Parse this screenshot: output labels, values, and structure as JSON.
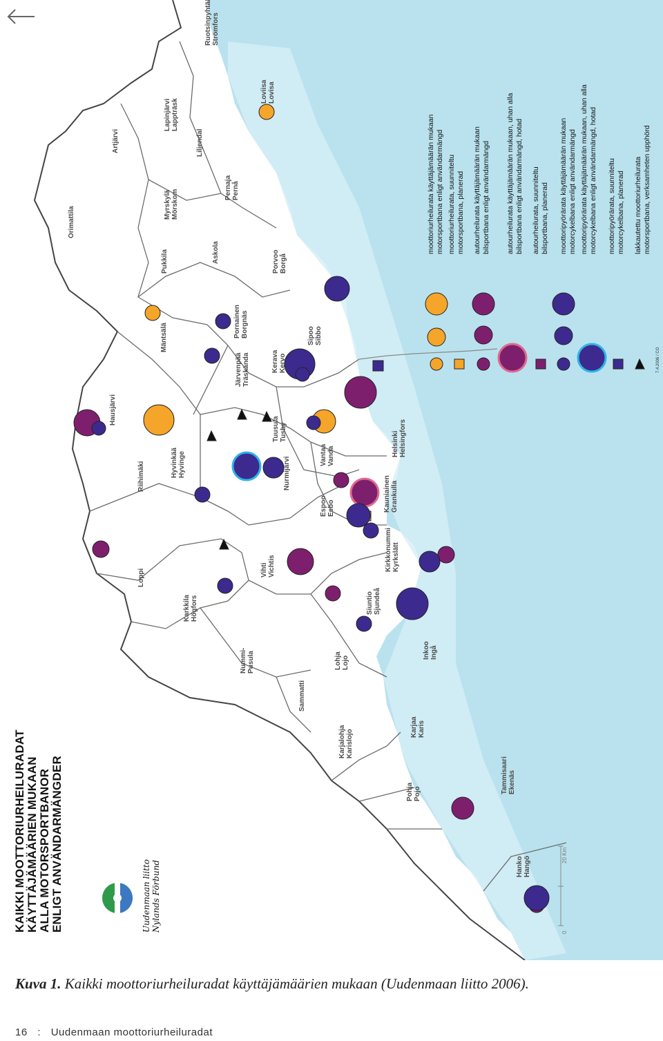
{
  "nav": {
    "back_icon": "back-arrow-icon"
  },
  "title": {
    "line1": "KAIKKI MOOTTORIURHEILURADAT",
    "line2": "KÄYTTÄJÄMÄÄRIEN MUKAAN",
    "line3": "ALLA MOTORSPORTBANOR",
    "line4": "ENLIGT ANVÄNDARMÄNGDER"
  },
  "logo": {
    "icon": "uudenmaan-liitto-logo-icon",
    "text_line1": "Uudenmaan liitto",
    "text_line2": "Nylands Förbund"
  },
  "colors": {
    "sea": "#b9e2ee",
    "land": "#ffffff",
    "border": "#555555",
    "orange": "#f5a52a",
    "purple": "#7e1f6e",
    "blue": "#3d2a8f",
    "ring_pink": "#e06a8c",
    "ring_cyan": "#2fb4e8"
  },
  "places": [
    {
      "fi": "Orimattila",
      "sv": ""
    },
    {
      "fi": "Artjärvi",
      "sv": ""
    },
    {
      "fi": "Lapinjärvi",
      "sv": "Lappträsk"
    },
    {
      "fi": "Ruotsinpyhtää",
      "sv": "Strömfors"
    },
    {
      "fi": "Loviisa",
      "sv": "Lovisa"
    },
    {
      "fi": "Liljendal",
      "sv": ""
    },
    {
      "fi": "Myrskylä",
      "sv": "Mörskom"
    },
    {
      "fi": "Pernaja",
      "sv": "Pernå"
    },
    {
      "fi": "Pukkila",
      "sv": ""
    },
    {
      "fi": "Askola",
      "sv": ""
    },
    {
      "fi": "Porvoo",
      "sv": "Borgå"
    },
    {
      "fi": "Mäntsälä",
      "sv": ""
    },
    {
      "fi": "Pornainen",
      "sv": "Borgnäs"
    },
    {
      "fi": "Sipoo",
      "sv": "Sibbo"
    },
    {
      "fi": "Järvenpää",
      "sv": "Träskända"
    },
    {
      "fi": "Kerava",
      "sv": "Kervo"
    },
    {
      "fi": "Hausjärvi",
      "sv": ""
    },
    {
      "fi": "Tuusula",
      "sv": "Tusby"
    },
    {
      "fi": "Riihimäki",
      "sv": ""
    },
    {
      "fi": "Hyvinkää",
      "sv": "Hyvinge"
    },
    {
      "fi": "Nurmijärvi",
      "sv": ""
    },
    {
      "fi": "Vantaa",
      "sv": "Vanda"
    },
    {
      "fi": "Helsinki",
      "sv": "Helsingfors"
    },
    {
      "fi": "Espoo",
      "sv": "Esbo"
    },
    {
      "fi": "Kauniainen",
      "sv": "Grankulla"
    },
    {
      "fi": "Loppi",
      "sv": ""
    },
    {
      "fi": "Vihti",
      "sv": "Vichtis"
    },
    {
      "fi": "Kirkkonummi",
      "sv": "Kyrkslätt"
    },
    {
      "fi": "Karkkila",
      "sv": "Högfors"
    },
    {
      "fi": "Siuntio",
      "sv": "Sjundeå"
    },
    {
      "fi": "Nummi-",
      "sv": "Pusula"
    },
    {
      "fi": "Lohja",
      "sv": "Lojo"
    },
    {
      "fi": "Inkoo",
      "sv": "Ingå"
    },
    {
      "fi": "Sammatti",
      "sv": ""
    },
    {
      "fi": "Karjalohja",
      "sv": "Karislojo"
    },
    {
      "fi": "Karjaa",
      "sv": "Karis"
    },
    {
      "fi": "Tammisaari",
      "sv": "Ekenäs"
    },
    {
      "fi": "Pohja",
      "sv": "Pojo"
    },
    {
      "fi": "Hanko",
      "sv": "Hangö"
    }
  ],
  "scale": {
    "zero": "0",
    "end": "20 Km"
  },
  "legend": [
    {
      "fi": "moottoriurheilurata käyttäjämäärän mukaan",
      "sv": "motorsportbana enligt användarmängd",
      "color": "orange"
    },
    {
      "fi": "moottoriurheilurata, suunniteltu",
      "sv": "motorsportbana, planerad",
      "color": "orange"
    },
    {
      "fi": "autourheilurata käyttäjämäärän mukaan",
      "sv": "bilsportbana enligt användarmängd",
      "color": "purple"
    },
    {
      "fi": "autourheilurata käyttäjämäärän mukaan, uhan alla",
      "sv": "bilsportbana enligt användarmängd, hotad",
      "color": "purple"
    },
    {
      "fi": "autourheilurata, suunniteltu",
      "sv": "bilsportbana, planerad",
      "color": "purple"
    },
    {
      "fi": "moottoripyörärata käyttäjämäärän mukaan",
      "sv": "motorcykelbana enligt användarmängd",
      "color": "blue"
    },
    {
      "fi": "moottoripyörärata käyttäjämäärän mukaan, uhan alla",
      "sv": "motorcykelbana enligt användarmängd, hotad",
      "color": "blue"
    },
    {
      "fi": "moottoripyörärata, suunniteltu",
      "sv": "motorcykelbana, planerad",
      "color": "blue"
    },
    {
      "fi": "lakkautettu moottoriurheilurata",
      "sv": "motorsportbana, verksamheten upphörd",
      "color": "black"
    }
  ],
  "credit": "7.4.2006 / CO",
  "caption": {
    "label": "Kuva 1.",
    "text": " Kaikki moottoriurheiluradat käyttäjämäärien mukaan (Uudenmaan liitto 2006)."
  },
  "footer": {
    "page_number": "16",
    "separator": ":",
    "publication": "Uudenmaan moottoriurheiluradat"
  }
}
